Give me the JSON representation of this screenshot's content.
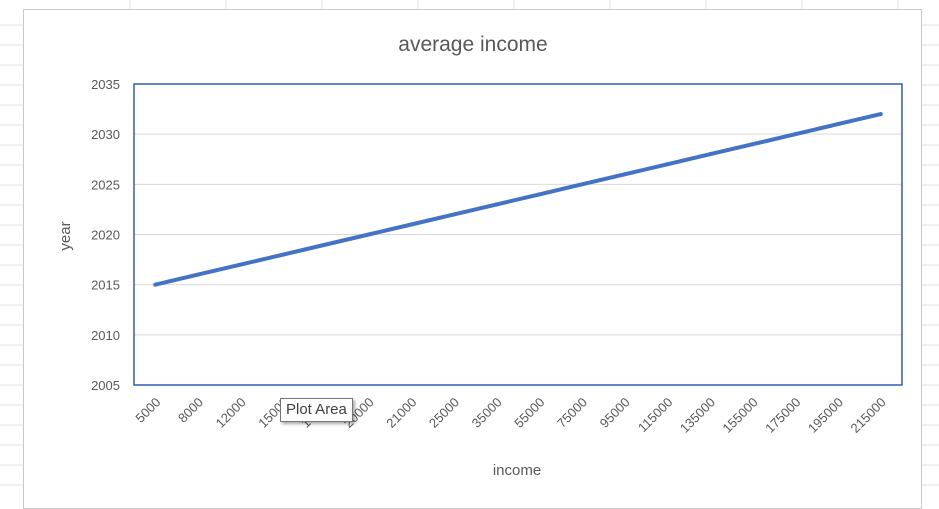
{
  "chart_data": {
    "type": "line",
    "title": "average income",
    "xlabel": "income",
    "ylabel": "year",
    "categories": [
      "5000",
      "8000",
      "12000",
      "15000",
      "18000",
      "20000",
      "21000",
      "25000",
      "35000",
      "55000",
      "75000",
      "95000",
      "115000",
      "135000",
      "155000",
      "175000",
      "195000",
      "215000"
    ],
    "series": [
      {
        "values": [
          2015,
          2016,
          2017,
          2018,
          2019,
          2020,
          2021,
          2022,
          2023,
          2024,
          2025,
          2026,
          2027,
          2028,
          2029,
          2030,
          2031,
          2032
        ]
      }
    ],
    "ylim": [
      2005,
      2035
    ],
    "yticks": [
      2005,
      2010,
      2015,
      2020,
      2025,
      2030,
      2035
    ],
    "grid": true,
    "legend": "none",
    "colors": {
      "series": "#4472c4",
      "plot_border": "#2e5fb5",
      "gridline": "#d9d9d9",
      "text": "#595959"
    }
  },
  "tooltip": {
    "text": "Plot Area"
  }
}
